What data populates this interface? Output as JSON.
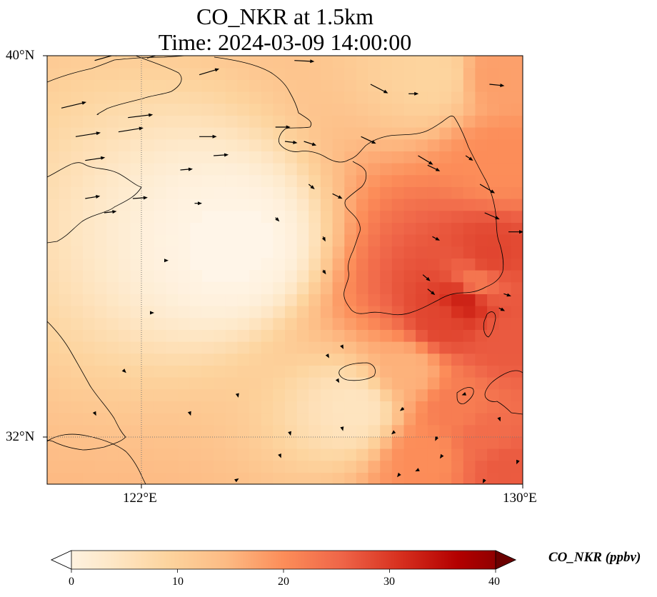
{
  "title": {
    "line1": "CO_NKR at 1.5km",
    "line2": "Time: 2024-03-09 14:00:00"
  },
  "axes": {
    "lat_labels": [
      "40°N",
      "32°N"
    ],
    "lon_labels": [
      "122°E",
      "130°E"
    ],
    "lat_range": [
      31,
      40
    ],
    "lon_range": [
      120,
      130
    ],
    "gridlines": {
      "lat": 32,
      "lon": 122,
      "style": "dotted"
    }
  },
  "colorbar": {
    "label": "CO_NKR (ppbv)",
    "ticks": [
      "0",
      "10",
      "20",
      "30",
      "40"
    ],
    "range": [
      0,
      40
    ],
    "extend": "both",
    "colormap": [
      "#fff7ec",
      "#fee8c8",
      "#fdd49e",
      "#fdbb84",
      "#fc8d59",
      "#ef6548",
      "#d7301f",
      "#b30000",
      "#7f0000"
    ]
  },
  "colors": {
    "coastline": "#000000",
    "background": "#fff5e8",
    "gridline": "#777777"
  },
  "chart_data": {
    "type": "heatmap",
    "variable": "CO_NKR",
    "units": "ppbv",
    "level": "1.5km",
    "time": "2024-03-09 14:00:00",
    "lon_range": [
      120,
      130
    ],
    "lat_range": [
      31,
      40
    ],
    "field_cells": [
      {
        "lon": 128.2,
        "lat": 39.6,
        "value": 10
      },
      {
        "lon": 129.4,
        "lat": 39.6,
        "value": 18
      },
      {
        "lon": 129.5,
        "lat": 37.8,
        "value": 20
      },
      {
        "lon": 129.0,
        "lat": 35.2,
        "value": 22
      },
      {
        "lon": 128.3,
        "lat": 34.4,
        "value": 28
      },
      {
        "lon": 129.3,
        "lat": 35.8,
        "value": 28
      },
      {
        "lon": 128.8,
        "lat": 34.9,
        "value": 32
      },
      {
        "lon": 129.6,
        "lat": 34.0,
        "value": 26
      },
      {
        "lon": 127.6,
        "lat": 33.4,
        "value": 16
      },
      {
        "lon": 128.6,
        "lat": 32.6,
        "value": 22
      },
      {
        "lon": 129.2,
        "lat": 32.0,
        "value": 24
      },
      {
        "lon": 128.0,
        "lat": 31.6,
        "value": 20
      },
      {
        "lon": 129.6,
        "lat": 31.4,
        "value": 26
      },
      {
        "lon": 126.5,
        "lat": 32.6,
        "value": 6
      },
      {
        "lon": 124.0,
        "lat": 36.0,
        "value": 1
      }
    ],
    "wind_vectors": [
      {
        "lon": 120.3,
        "lat": 38.9,
        "u": 5,
        "v": 1.2
      },
      {
        "lon": 120.6,
        "lat": 38.3,
        "u": 5,
        "v": 0.8
      },
      {
        "lon": 121.5,
        "lat": 38.4,
        "u": 5,
        "v": 0.8
      },
      {
        "lon": 121.7,
        "lat": 38.7,
        "u": 5,
        "v": 0.6
      },
      {
        "lon": 122.1,
        "lat": 39.95,
        "u": 5,
        "v": 1.4
      },
      {
        "lon": 121.0,
        "lat": 39.9,
        "u": 5,
        "v": 1.4
      },
      {
        "lon": 123.2,
        "lat": 39.6,
        "u": 4,
        "v": 1.2
      },
      {
        "lon": 123.2,
        "lat": 38.3,
        "u": 3.5,
        "v": 0
      },
      {
        "lon": 123.5,
        "lat": 37.9,
        "u": 3,
        "v": 0.2
      },
      {
        "lon": 122.8,
        "lat": 37.6,
        "u": 2.5,
        "v": 0.2
      },
      {
        "lon": 120.8,
        "lat": 37.8,
        "u": 4,
        "v": 0.6
      },
      {
        "lon": 120.8,
        "lat": 37.0,
        "u": 3,
        "v": 0.5
      },
      {
        "lon": 121.2,
        "lat": 36.7,
        "u": 2.5,
        "v": 0.3
      },
      {
        "lon": 121.8,
        "lat": 37.0,
        "u": 3,
        "v": 0.2
      },
      {
        "lon": 123.1,
        "lat": 36.9,
        "u": 1.5,
        "v": 0
      },
      {
        "lon": 124.8,
        "lat": 38.5,
        "u": 3,
        "v": 0
      },
      {
        "lon": 125.0,
        "lat": 38.2,
        "u": 2.5,
        "v": -0.3
      },
      {
        "lon": 125.4,
        "lat": 38.2,
        "u": 2.5,
        "v": -0.8
      },
      {
        "lon": 125.2,
        "lat": 39.9,
        "u": 4,
        "v": -0.2
      },
      {
        "lon": 126.8,
        "lat": 39.4,
        "u": 3.5,
        "v": -1.8
      },
      {
        "lon": 127.6,
        "lat": 39.2,
        "u": 2,
        "v": 0
      },
      {
        "lon": 126.6,
        "lat": 38.3,
        "u": 3,
        "v": -1.4
      },
      {
        "lon": 127.8,
        "lat": 37.9,
        "u": 3,
        "v": -1.8
      },
      {
        "lon": 128.0,
        "lat": 37.7,
        "u": 2.5,
        "v": -1.2
      },
      {
        "lon": 128.8,
        "lat": 37.9,
        "u": 1.5,
        "v": -1.0
      },
      {
        "lon": 129.3,
        "lat": 39.4,
        "u": 3,
        "v": -0.3
      },
      {
        "lon": 129.1,
        "lat": 37.3,
        "u": 3,
        "v": -1.8
      },
      {
        "lon": 129.2,
        "lat": 36.7,
        "u": 3,
        "v": -1.3
      },
      {
        "lon": 129.7,
        "lat": 36.3,
        "u": 3,
        "v": 0
      },
      {
        "lon": 125.5,
        "lat": 37.3,
        "u": 1.2,
        "v": -1.0
      },
      {
        "lon": 126.0,
        "lat": 37.1,
        "u": 2,
        "v": -1.0
      },
      {
        "lon": 128.1,
        "lat": 36.2,
        "u": 1.5,
        "v": -0.8
      },
      {
        "lon": 127.9,
        "lat": 35.4,
        "u": 1.5,
        "v": -1.3
      },
      {
        "lon": 128.0,
        "lat": 35.1,
        "u": 1.5,
        "v": -1.2
      },
      {
        "lon": 129.5,
        "lat": 34.7,
        "u": 1.2,
        "v": -0.6
      },
      {
        "lon": 129.6,
        "lat": 35.0,
        "u": 1.5,
        "v": -0.5
      },
      {
        "lon": 124.8,
        "lat": 36.6,
        "u": 0.8,
        "v": -0.8
      },
      {
        "lon": 125.8,
        "lat": 36.2,
        "u": 0.5,
        "v": -1.0
      },
      {
        "lon": 125.8,
        "lat": 35.5,
        "u": 0.6,
        "v": -0.9
      },
      {
        "lon": 127.5,
        "lat": 32.6,
        "u": -0.8,
        "v": -0.6
      },
      {
        "lon": 127.3,
        "lat": 32.1,
        "u": -0.6,
        "v": -0.5
      },
      {
        "lon": 128.8,
        "lat": 32.9,
        "u": -0.8,
        "v": -0.3
      },
      {
        "lon": 128.2,
        "lat": 32.0,
        "u": -0.4,
        "v": -0.9
      },
      {
        "lon": 127.8,
        "lat": 31.3,
        "u": -0.6,
        "v": -0.3
      },
      {
        "lon": 127.4,
        "lat": 31.2,
        "u": -0.4,
        "v": -0.5
      },
      {
        "lon": 128.3,
        "lat": 31.6,
        "u": -0.4,
        "v": -0.6
      },
      {
        "lon": 129.2,
        "lat": 31.1,
        "u": -0.4,
        "v": -0.8
      },
      {
        "lon": 129.5,
        "lat": 32.4,
        "u": 0.3,
        "v": -0.8
      },
      {
        "lon": 129.9,
        "lat": 31.5,
        "u": -0.3,
        "v": -0.8
      },
      {
        "lon": 126.2,
        "lat": 32.2,
        "u": 0.2,
        "v": -0.8
      },
      {
        "lon": 122.5,
        "lat": 35.7,
        "u": 0.5,
        "v": 0
      },
      {
        "lon": 122.2,
        "lat": 34.6,
        "u": 0.5,
        "v": 0
      },
      {
        "lon": 121.6,
        "lat": 33.4,
        "u": 0.6,
        "v": -0.6
      },
      {
        "lon": 121.0,
        "lat": 32.5,
        "u": 0.3,
        "v": -0.6
      },
      {
        "lon": 123.0,
        "lat": 32.5,
        "u": 0.2,
        "v": -0.6
      },
      {
        "lon": 124.0,
        "lat": 32.9,
        "u": 0.2,
        "v": -0.8
      },
      {
        "lon": 125.1,
        "lat": 32.1,
        "u": 0.2,
        "v": -0.8
      },
      {
        "lon": 124.0,
        "lat": 31.1,
        "u": 0.3,
        "v": 0.2
      },
      {
        "lon": 124.9,
        "lat": 31.6,
        "u": 0.2,
        "v": -0.5
      },
      {
        "lon": 126.2,
        "lat": 33.9,
        "u": 0.3,
        "v": -0.6
      },
      {
        "lon": 125.9,
        "lat": 33.7,
        "u": 0.3,
        "v": -0.5
      },
      {
        "lon": 126.1,
        "lat": 33.2,
        "u": 0.4,
        "v": -0.7
      }
    ]
  }
}
